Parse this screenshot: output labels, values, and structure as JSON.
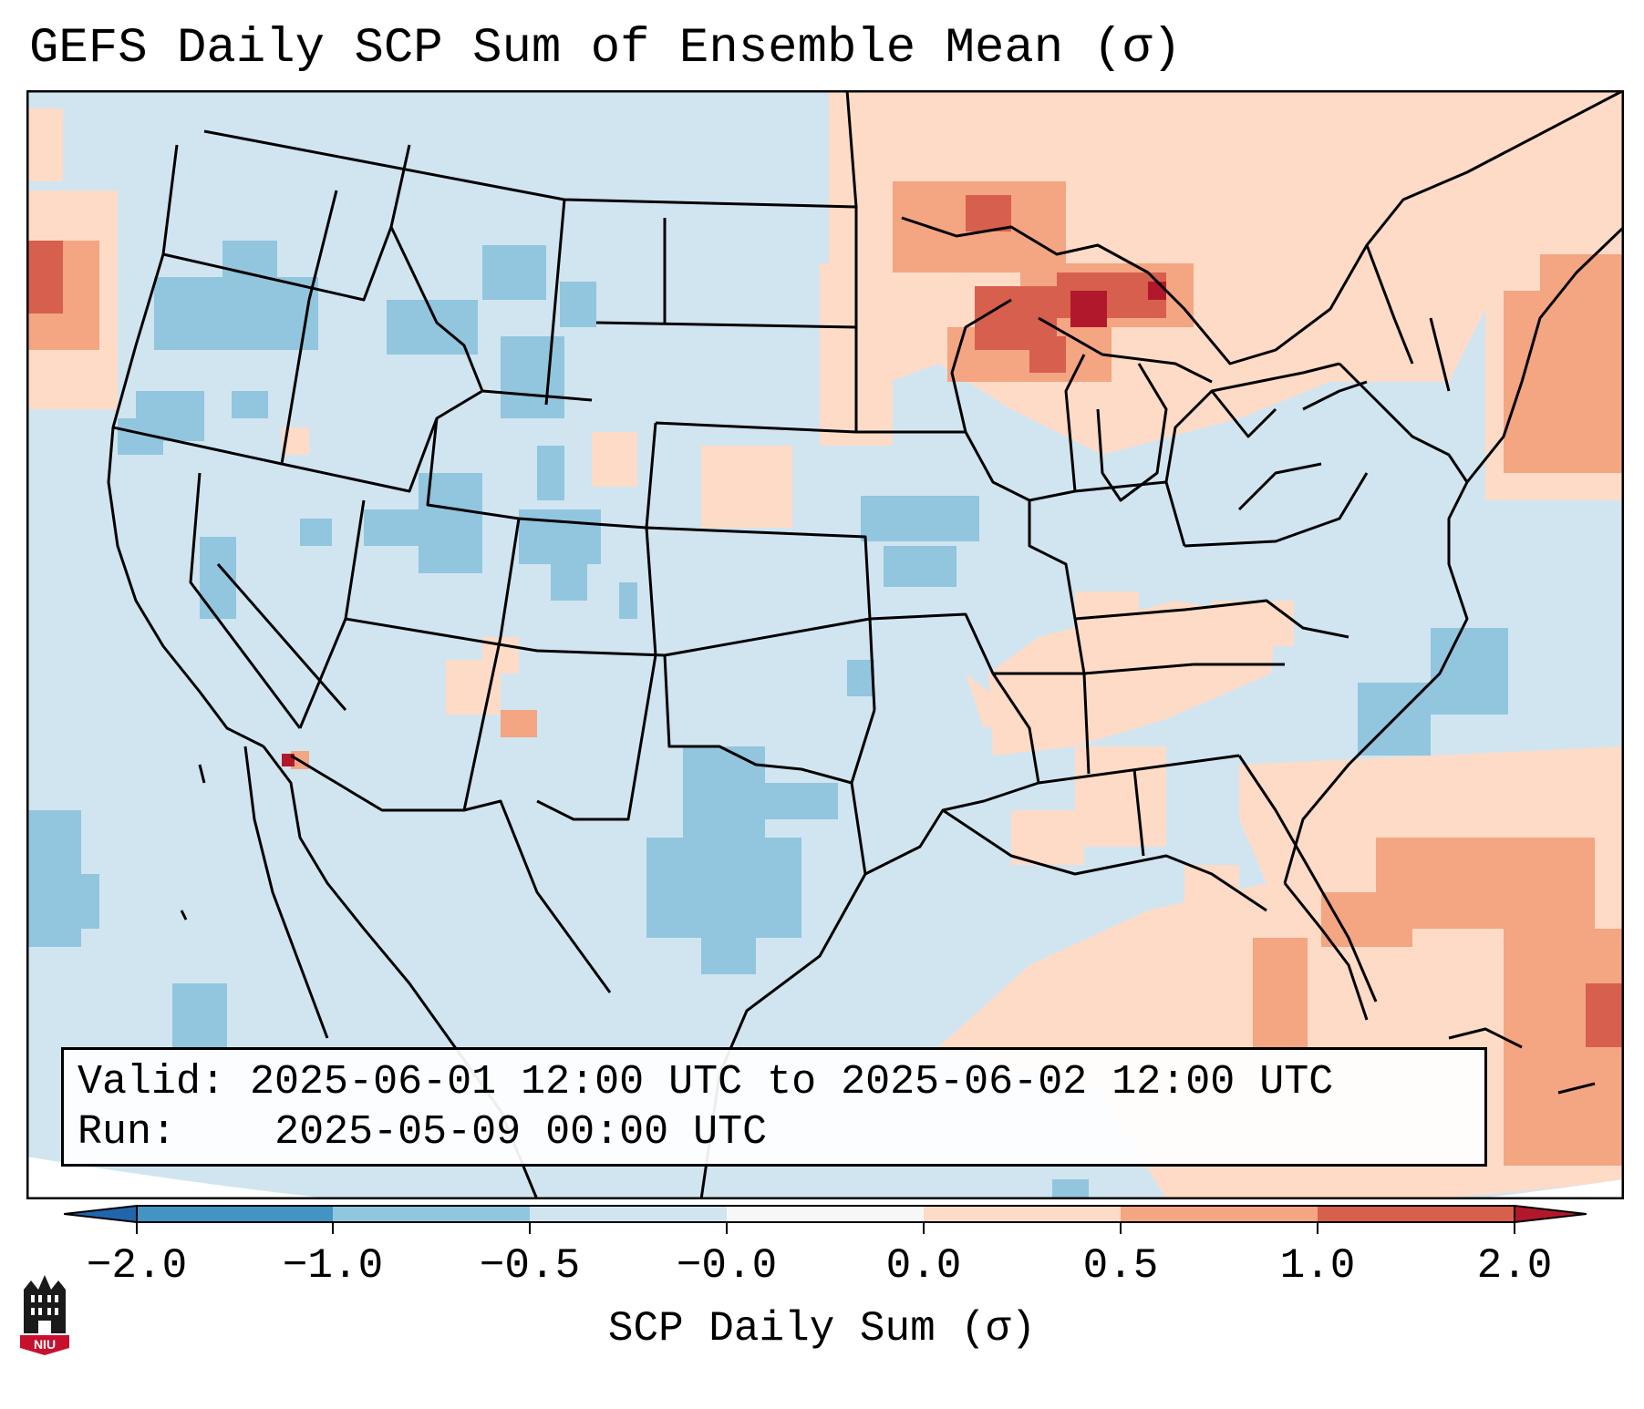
{
  "title": "GEFS Daily SCP Sum of Ensemble Mean (σ)",
  "info": {
    "valid_label": "Valid:",
    "valid_value": "2025-06-01 12:00 UTC to 2025-06-02 12:00 UTC",
    "run_label": "Run:",
    "run_value": "2025-05-09 00:00 UTC"
  },
  "colorbar": {
    "label": "SCP Daily Sum (σ)",
    "ticks": [
      "−2.0",
      "−1.0",
      "−0.5",
      "−0.0",
      "0.0",
      "0.5",
      "1.0",
      "2.0"
    ],
    "colors": [
      "#3b7dbf",
      "#8dc0de",
      "#d1e5f0",
      "#f7f7f7",
      "#fddbc7",
      "#f3a381",
      "#d6604d",
      "#b2182b"
    ]
  },
  "map": {
    "region": "Contiguous United States",
    "field_colors": {
      "neutral_negative": "#d1e5f0",
      "moderate_negative": "#92c5de",
      "neutral_positive": "#fddbc7",
      "moderate_positive": "#f4a582",
      "high_positive": "#d6604d",
      "extreme_positive": "#b2182b"
    }
  },
  "logo": {
    "text": "NIU",
    "icon": "university-tower-icon"
  }
}
